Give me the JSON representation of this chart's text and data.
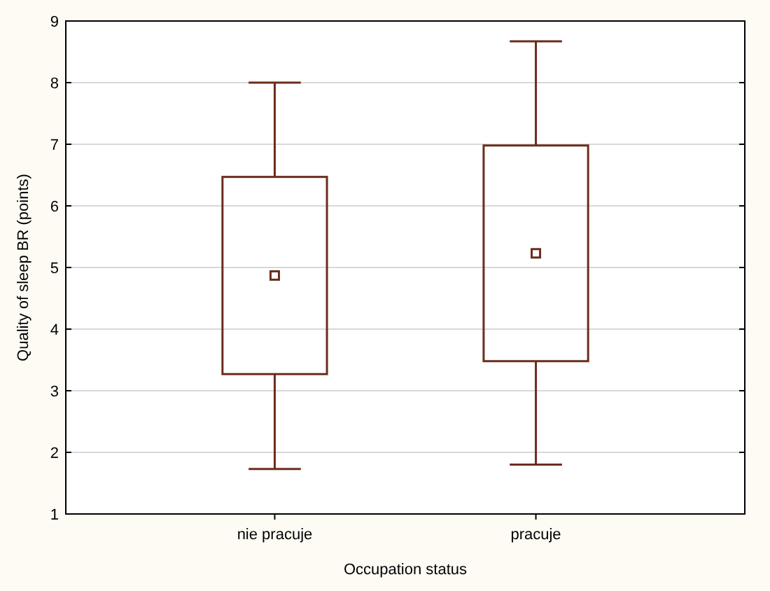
{
  "chart_data": {
    "type": "box",
    "xlabel": "Occupation status",
    "ylabel": "Quality of sleep BR (points)",
    "categories": [
      "nie pracuje",
      "pracuje"
    ],
    "boxes": [
      {
        "low": 1.73,
        "q1": 3.27,
        "median": 4.87,
        "q3": 6.47,
        "high": 8.0
      },
      {
        "low": 1.8,
        "q1": 3.48,
        "median": 5.23,
        "q3": 6.98,
        "high": 8.67
      }
    ],
    "color": "#6b2d1c",
    "ylim": [
      1,
      9
    ],
    "yticks": [
      1,
      2,
      3,
      4,
      5,
      6,
      7,
      8,
      9
    ],
    "grid": "y",
    "marker": "square"
  }
}
